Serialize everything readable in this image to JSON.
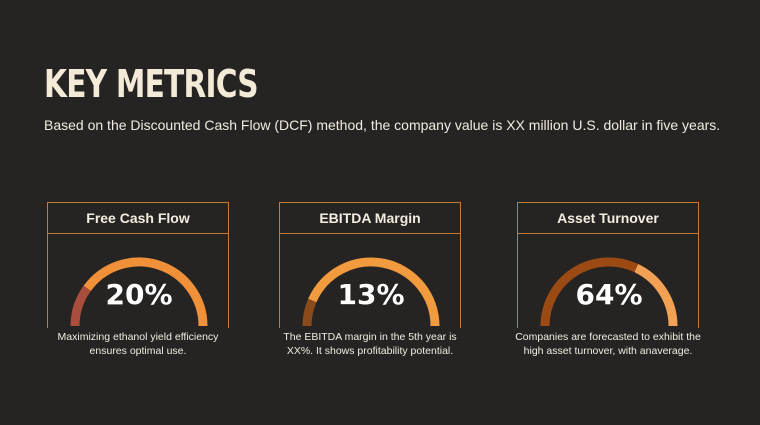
{
  "slide": {
    "title": "KEY METRICS",
    "subtitle": "Based on the Discounted Cash Flow (DCF) method, the company value is XX million U.S. dollar in five years."
  },
  "metrics": [
    {
      "header": "Free Cash Flow",
      "value_label": "20%",
      "value_fraction": 0.2,
      "caption_line1": "Maximizing ethanol yield efficiency",
      "caption_line2": "ensures optimal use.",
      "filled_color": "#a94e3c",
      "track_color": "#f0913a"
    },
    {
      "header": "EBITDA Margin",
      "value_label": "13%",
      "value_fraction": 0.13,
      "caption_line1": "The EBITDA margin in the 5th year is",
      "caption_line2": "XX%. It shows profitability potential.",
      "filled_color": "#8a4a1c",
      "track_color": "#f29a3e"
    },
    {
      "header": "Asset Turnover",
      "value_label": "64%",
      "value_fraction": 0.64,
      "caption_line1": "Companies are forecasted to exhibit the",
      "caption_line2": "high asset turnover, with anaverage.",
      "filled_color": "#9c4a14",
      "track_color": "#f2a054"
    }
  ],
  "colors": {
    "background": "#262423",
    "accent_border": "#c47a3a",
    "title": "#f3ead8"
  }
}
